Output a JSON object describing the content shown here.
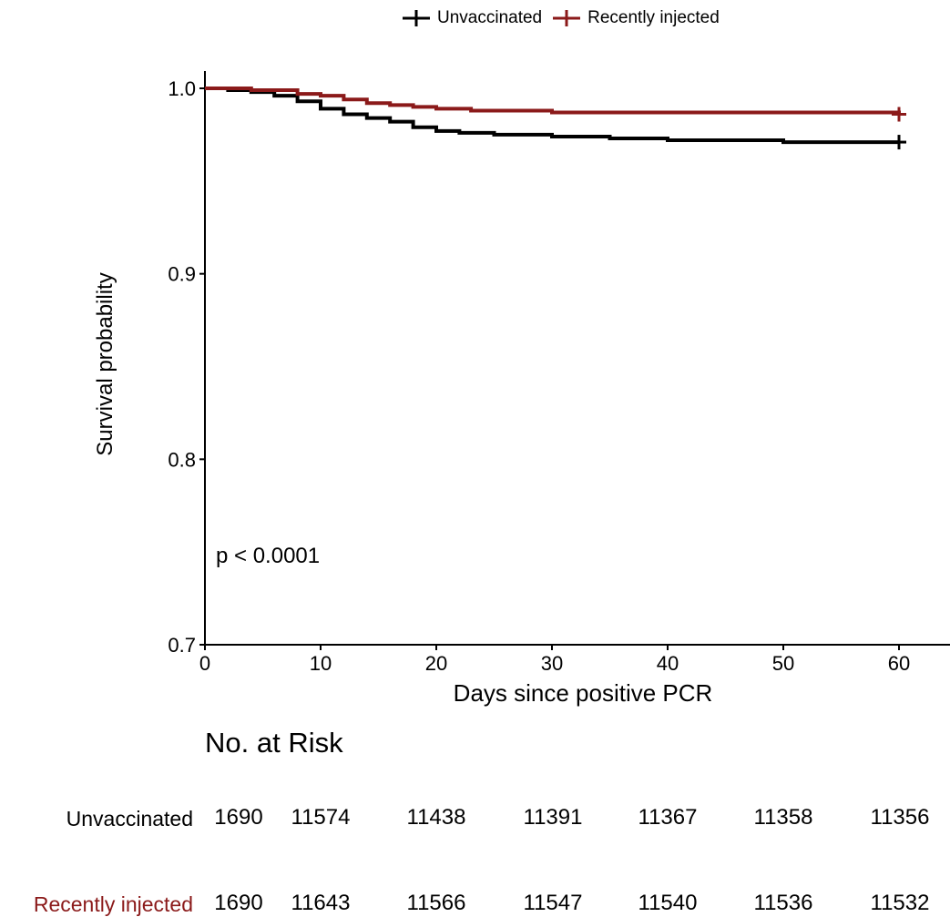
{
  "chart_data": {
    "type": "line",
    "title": "",
    "xlabel": "Days since positive PCR",
    "ylabel": "Survival probability",
    "xlim": [
      0,
      63
    ],
    "ylim": [
      0.7,
      1.0
    ],
    "x_ticks": [
      "0",
      "10",
      "20",
      "30",
      "40",
      "50",
      "60"
    ],
    "y_ticks": [
      "0.7",
      "0.8",
      "0.9",
      "1.0"
    ],
    "annotation": "p < 0.0001",
    "legend_position": "top",
    "grid": false,
    "series": [
      {
        "name": "Unvaccinated",
        "color": "#000000",
        "points": [
          [
            0,
            1.0
          ],
          [
            2,
            0.999
          ],
          [
            4,
            0.998
          ],
          [
            6,
            0.996
          ],
          [
            8,
            0.993
          ],
          [
            10,
            0.989
          ],
          [
            12,
            0.986
          ],
          [
            14,
            0.984
          ],
          [
            16,
            0.982
          ],
          [
            18,
            0.979
          ],
          [
            20,
            0.977
          ],
          [
            22,
            0.976
          ],
          [
            25,
            0.975
          ],
          [
            30,
            0.974
          ],
          [
            35,
            0.973
          ],
          [
            40,
            0.972
          ],
          [
            45,
            0.972
          ],
          [
            50,
            0.971
          ],
          [
            55,
            0.971
          ],
          [
            60,
            0.971
          ]
        ]
      },
      {
        "name": "Recently injected",
        "color": "#8b1a1a",
        "points": [
          [
            0,
            1.0
          ],
          [
            2,
            1.0
          ],
          [
            4,
            0.999
          ],
          [
            6,
            0.999
          ],
          [
            8,
            0.997
          ],
          [
            10,
            0.996
          ],
          [
            12,
            0.994
          ],
          [
            14,
            0.992
          ],
          [
            16,
            0.991
          ],
          [
            18,
            0.99
          ],
          [
            20,
            0.989
          ],
          [
            23,
            0.988
          ],
          [
            26,
            0.988
          ],
          [
            30,
            0.987
          ],
          [
            35,
            0.987
          ],
          [
            40,
            0.987
          ],
          [
            45,
            0.987
          ],
          [
            50,
            0.987
          ],
          [
            55,
            0.987
          ],
          [
            60,
            0.986
          ]
        ]
      }
    ]
  },
  "risk_table": {
    "title": "No. at Risk",
    "rows": [
      {
        "label": "Unvaccinated",
        "color": "#000000",
        "values": [
          "1690",
          "11574",
          "11438",
          "11391",
          "11367",
          "11358",
          "11356"
        ]
      },
      {
        "label": "Recently injected",
        "color": "#8b1a1a",
        "values": [
          "1690",
          "11643",
          "11566",
          "11547",
          "11540",
          "11536",
          "11532"
        ]
      }
    ]
  }
}
